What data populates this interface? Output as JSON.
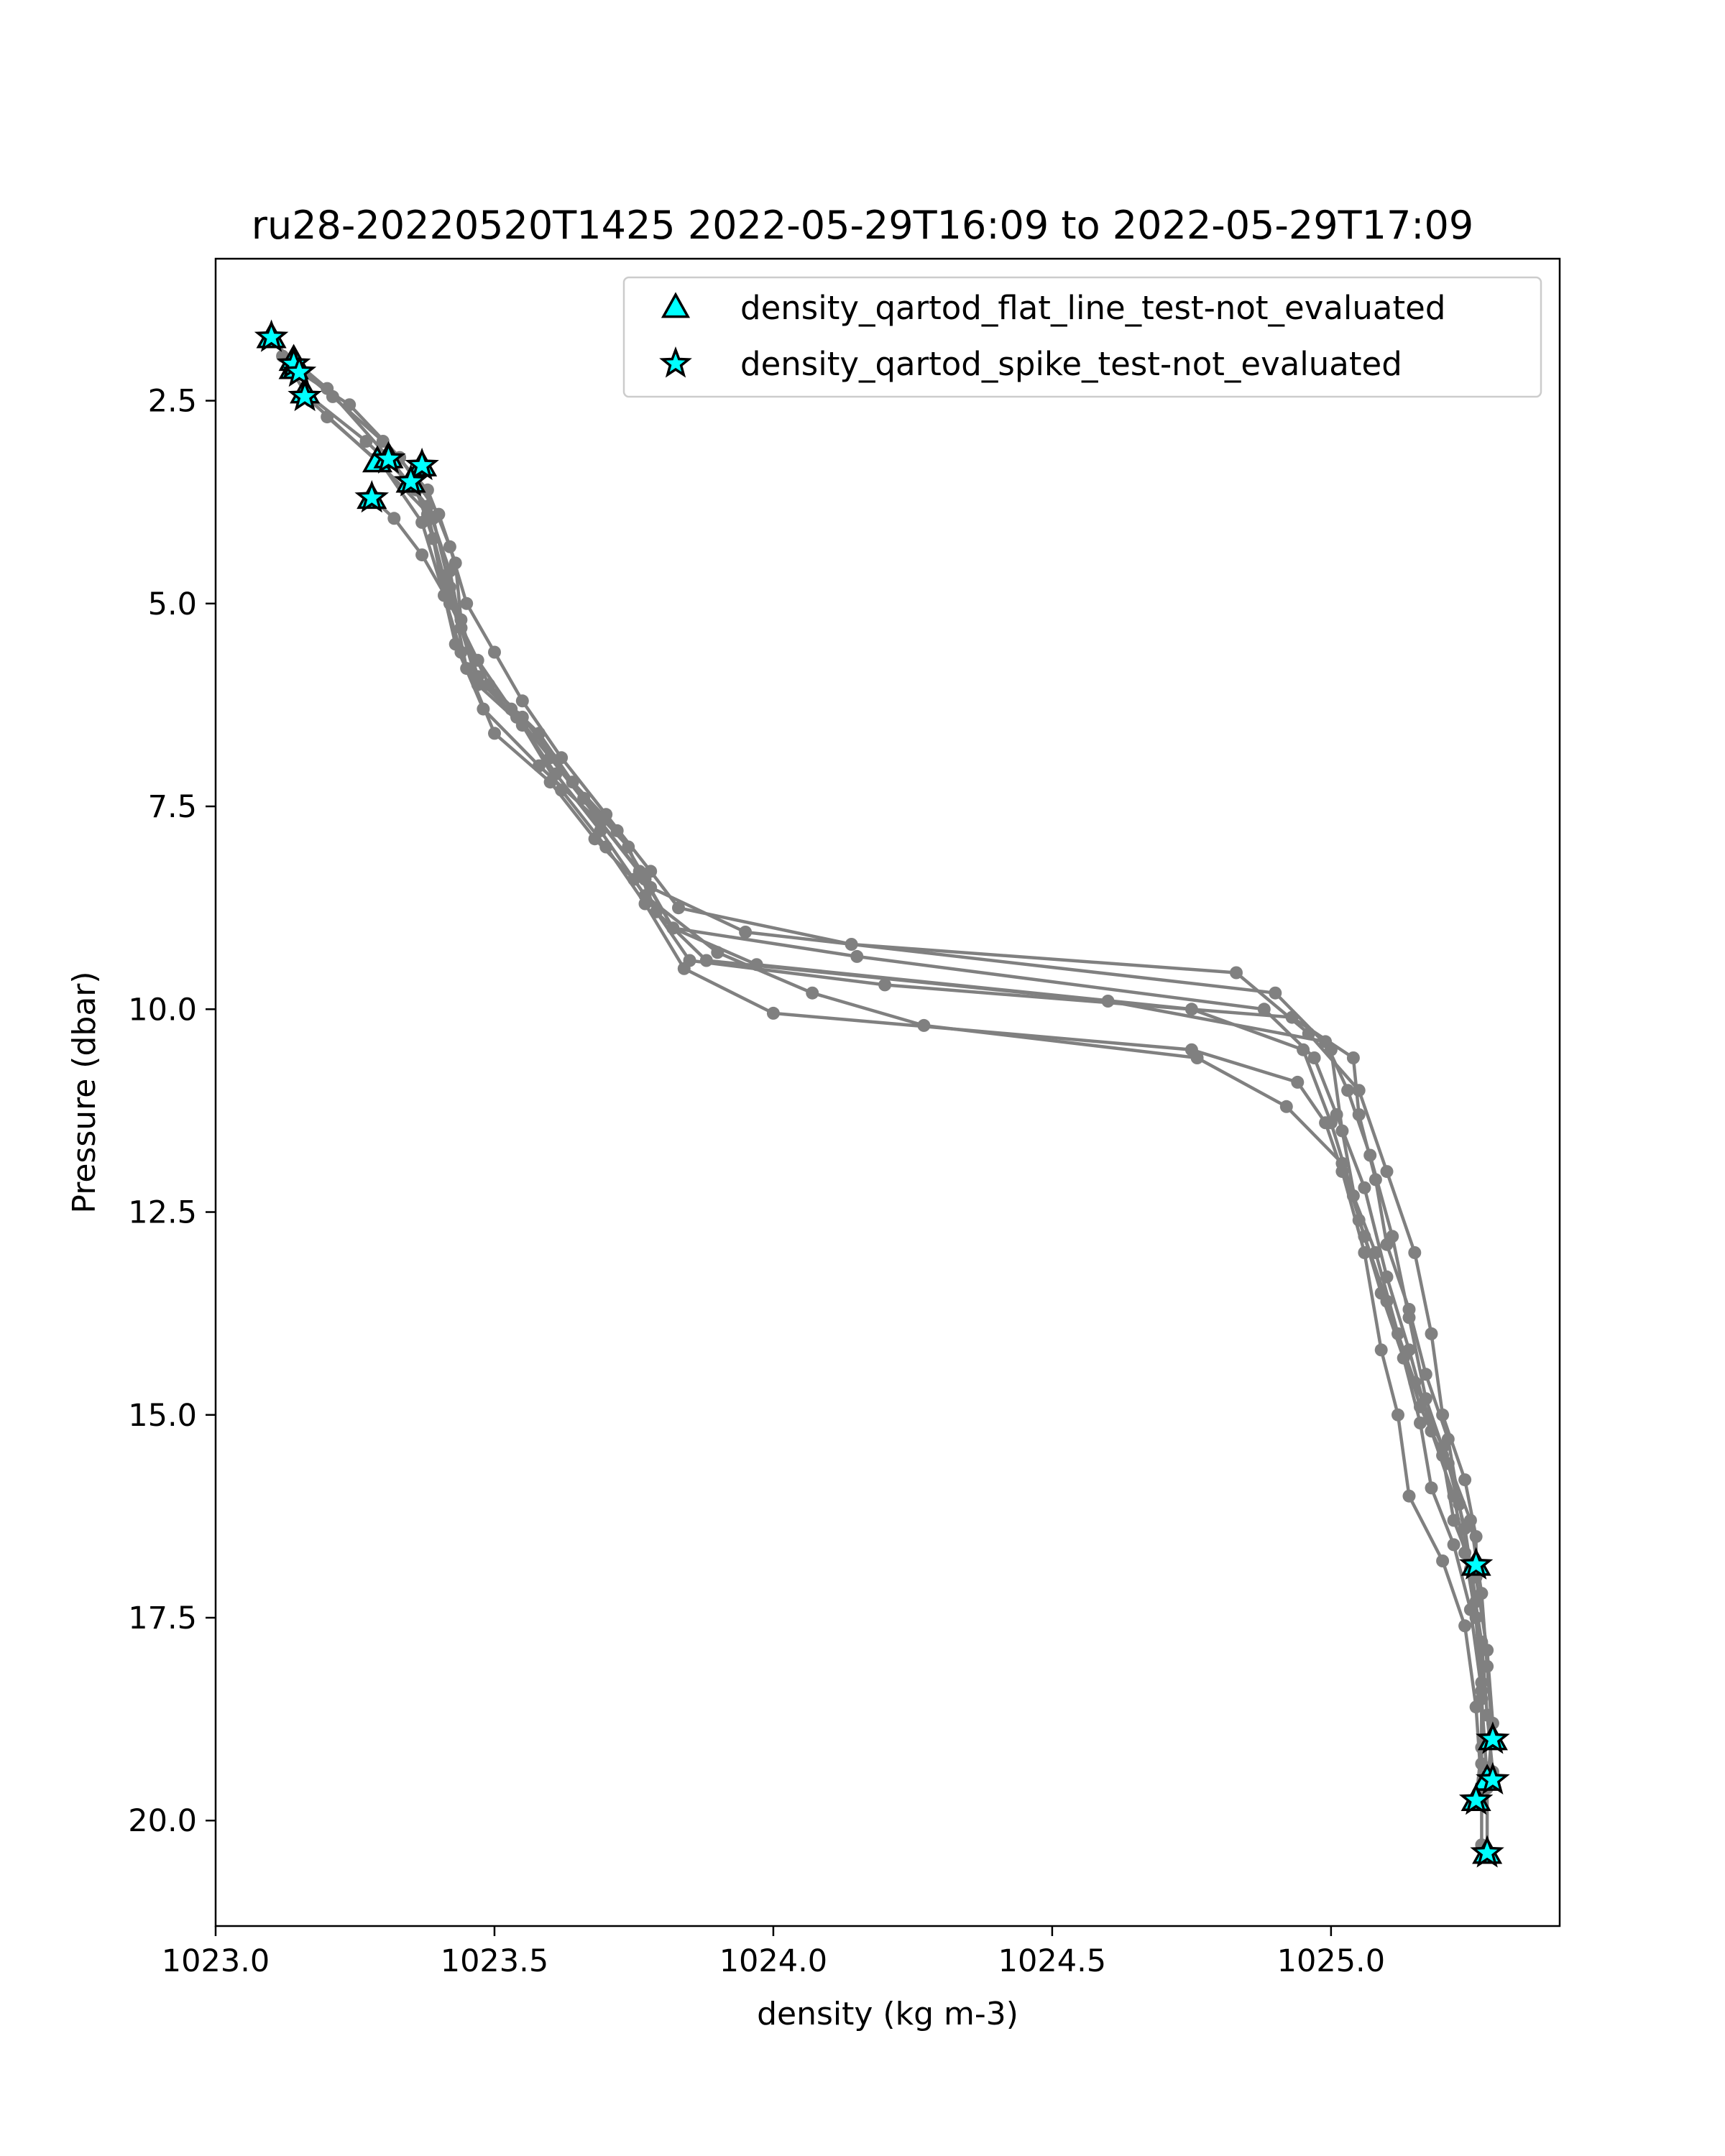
{
  "chart_data": {
    "type": "line",
    "title": "ru28-20220520T1425 2022-05-29T16:09 to 2022-05-29T17:09",
    "xlabel": "density (kg m-3)",
    "ylabel": "Pressure (dbar)",
    "xlim": [
      1023.0,
      1025.41
    ],
    "ylim": [
      21.3,
      0.75
    ],
    "y_inverted": true,
    "grid": false,
    "legend_position": "upper right",
    "xticks": [
      {
        "value": 1023.0,
        "label": "1023.0"
      },
      {
        "value": 1023.5,
        "label": "1023.5"
      },
      {
        "value": 1024.0,
        "label": "1024.0"
      },
      {
        "value": 1024.5,
        "label": "1024.5"
      },
      {
        "value": 1025.0,
        "label": "1025.0"
      }
    ],
    "yticks": [
      {
        "value": 2.5,
        "label": "2.5"
      },
      {
        "value": 5.0,
        "label": "5.0"
      },
      {
        "value": 7.5,
        "label": "7.5"
      },
      {
        "value": 10.0,
        "label": "10.0"
      },
      {
        "value": 12.5,
        "label": "12.5"
      },
      {
        "value": 15.0,
        "label": "15.0"
      },
      {
        "value": 17.5,
        "label": "17.5"
      },
      {
        "value": 20.0,
        "label": "20.0"
      }
    ],
    "profile_color": "#808080",
    "series": [
      {
        "points": [
          [
            1023.1,
            1.72
          ],
          [
            1023.14,
            2.05
          ],
          [
            1023.21,
            2.45
          ],
          [
            1023.3,
            3.0
          ],
          [
            1023.38,
            3.6
          ],
          [
            1023.42,
            4.3
          ],
          [
            1023.45,
            5.0
          ],
          [
            1023.5,
            5.6
          ],
          [
            1023.55,
            6.2
          ],
          [
            1023.62,
            6.9
          ],
          [
            1023.7,
            7.6
          ],
          [
            1023.78,
            8.3
          ],
          [
            1023.83,
            8.75
          ],
          [
            1024.14,
            9.2
          ],
          [
            1024.83,
            9.55
          ],
          [
            1024.96,
            10.3
          ],
          [
            1025.05,
            11.0
          ],
          [
            1025.1,
            12.0
          ],
          [
            1025.15,
            13.0
          ],
          [
            1025.18,
            14.0
          ],
          [
            1025.2,
            15.0
          ],
          [
            1025.24,
            15.8
          ],
          [
            1025.26,
            16.5
          ],
          [
            1025.26,
            16.85
          ]
        ]
      },
      {
        "points": [
          [
            1023.14,
            2.1
          ],
          [
            1023.24,
            2.55
          ],
          [
            1023.33,
            3.2
          ],
          [
            1023.4,
            3.9
          ],
          [
            1023.43,
            4.5
          ],
          [
            1023.44,
            5.2
          ],
          [
            1023.47,
            5.9
          ],
          [
            1023.55,
            6.4
          ],
          [
            1023.64,
            7.2
          ],
          [
            1023.72,
            7.8
          ],
          [
            1023.78,
            8.5
          ],
          [
            1023.95,
            9.05
          ],
          [
            1024.9,
            9.8
          ],
          [
            1025.0,
            10.5
          ],
          [
            1025.02,
            11.5
          ],
          [
            1025.05,
            12.6
          ],
          [
            1025.1,
            13.6
          ],
          [
            1025.15,
            14.6
          ],
          [
            1025.2,
            15.4
          ],
          [
            1025.25,
            16.3
          ],
          [
            1025.27,
            17.2
          ],
          [
            1025.28,
            18.1
          ],
          [
            1025.29,
            19.0
          ]
        ]
      },
      {
        "points": [
          [
            1023.16,
            2.4
          ],
          [
            1023.27,
            3.0
          ],
          [
            1023.36,
            3.6
          ],
          [
            1023.39,
            4.2
          ],
          [
            1023.41,
            4.9
          ],
          [
            1023.43,
            5.5
          ],
          [
            1023.48,
            6.3
          ],
          [
            1023.58,
            7.0
          ],
          [
            1023.69,
            7.7
          ],
          [
            1023.77,
            8.4
          ],
          [
            1023.82,
            9.0
          ],
          [
            1024.15,
            9.35
          ],
          [
            1024.88,
            10.0
          ],
          [
            1024.97,
            10.6
          ],
          [
            1025.01,
            11.3
          ],
          [
            1025.06,
            12.2
          ],
          [
            1025.1,
            13.3
          ],
          [
            1025.14,
            14.2
          ],
          [
            1025.18,
            15.2
          ],
          [
            1025.22,
            16.0
          ],
          [
            1025.24,
            16.7
          ],
          [
            1025.26,
            17.5
          ],
          [
            1025.27,
            18.5
          ],
          [
            1025.28,
            19.5
          ]
        ]
      },
      {
        "points": [
          [
            1023.14,
            2.0
          ],
          [
            1023.2,
            2.35
          ],
          [
            1023.31,
            3.2
          ],
          [
            1023.38,
            3.8
          ],
          [
            1023.42,
            4.6
          ],
          [
            1023.44,
            5.3
          ],
          [
            1023.49,
            6.0
          ],
          [
            1023.58,
            6.6
          ],
          [
            1023.66,
            7.4
          ],
          [
            1023.74,
            8.0
          ],
          [
            1023.79,
            8.8
          ],
          [
            1023.88,
            9.4
          ],
          [
            1024.6,
            9.9
          ],
          [
            1024.99,
            10.4
          ],
          [
            1025.03,
            11.0
          ],
          [
            1025.07,
            11.8
          ],
          [
            1025.11,
            12.8
          ],
          [
            1025.14,
            13.8
          ],
          [
            1025.17,
            14.8
          ],
          [
            1025.21,
            15.6
          ],
          [
            1025.24,
            16.4
          ],
          [
            1025.26,
            17.3
          ],
          [
            1025.27,
            18.3
          ],
          [
            1025.27,
            19.1
          ],
          [
            1025.26,
            19.75
          ]
        ]
      },
      {
        "points": [
          [
            1023.28,
            3.7
          ],
          [
            1023.32,
            3.95
          ],
          [
            1023.37,
            4.4
          ],
          [
            1023.42,
            5.0
          ],
          [
            1023.47,
            5.7
          ],
          [
            1023.53,
            6.3
          ],
          [
            1023.6,
            6.9
          ],
          [
            1023.68,
            7.6
          ],
          [
            1023.76,
            8.3
          ],
          [
            1023.82,
            9.0
          ],
          [
            1023.97,
            9.45
          ],
          [
            1024.75,
            10.0
          ],
          [
            1024.95,
            10.5
          ],
          [
            1025.0,
            11.4
          ],
          [
            1025.04,
            12.3
          ],
          [
            1025.08,
            13.0
          ],
          [
            1025.12,
            14.0
          ],
          [
            1025.16,
            14.9
          ],
          [
            1025.2,
            15.5
          ],
          [
            1025.22,
            16.3
          ],
          [
            1025.26,
            17.0
          ],
          [
            1025.28,
            17.9
          ],
          [
            1025.29,
            18.8
          ],
          [
            1025.28,
            19.6
          ],
          [
            1025.28,
            20.4
          ]
        ]
      },
      {
        "points": [
          [
            1023.35,
            3.5
          ],
          [
            1023.38,
            3.9
          ],
          [
            1023.41,
            4.7
          ],
          [
            1023.44,
            5.3
          ],
          [
            1023.47,
            6.0
          ],
          [
            1023.55,
            6.5
          ],
          [
            1023.62,
            7.3
          ],
          [
            1023.7,
            8.0
          ],
          [
            1023.77,
            8.7
          ],
          [
            1023.84,
            9.5
          ],
          [
            1024.0,
            10.05
          ],
          [
            1024.75,
            10.5
          ],
          [
            1024.94,
            10.9
          ],
          [
            1024.99,
            11.4
          ],
          [
            1025.02,
            12.0
          ],
          [
            1025.06,
            13.0
          ],
          [
            1025.09,
            14.2
          ],
          [
            1025.12,
            15.0
          ],
          [
            1025.14,
            16.0
          ],
          [
            1025.2,
            16.8
          ],
          [
            1025.24,
            17.6
          ],
          [
            1025.26,
            18.6
          ],
          [
            1025.27,
            19.6
          ],
          [
            1025.27,
            20.3
          ]
        ]
      },
      {
        "points": [
          [
            1023.12,
            1.95
          ],
          [
            1023.17,
            2.5
          ],
          [
            1023.29,
            3.25
          ],
          [
            1023.39,
            3.95
          ],
          [
            1023.42,
            4.8
          ],
          [
            1023.45,
            5.8
          ],
          [
            1023.54,
            6.4
          ],
          [
            1023.61,
            7.1
          ],
          [
            1023.69,
            7.8
          ],
          [
            1023.77,
            8.6
          ],
          [
            1023.9,
            9.3
          ],
          [
            1024.07,
            9.8
          ],
          [
            1024.27,
            10.2
          ],
          [
            1024.76,
            10.6
          ],
          [
            1024.92,
            11.2
          ],
          [
            1025.02,
            11.9
          ],
          [
            1025.06,
            12.8
          ],
          [
            1025.09,
            13.5
          ],
          [
            1025.13,
            14.3
          ],
          [
            1025.16,
            15.1
          ],
          [
            1025.18,
            15.9
          ],
          [
            1025.22,
            16.6
          ],
          [
            1025.25,
            17.4
          ],
          [
            1025.27,
            18.4
          ],
          [
            1025.27,
            19.3
          ],
          [
            1025.27,
            19.75
          ]
        ]
      },
      {
        "points": [
          [
            1023.2,
            2.7
          ],
          [
            1023.3,
            3.3
          ],
          [
            1023.37,
            4.0
          ],
          [
            1023.41,
            4.9
          ],
          [
            1023.44,
            5.6
          ],
          [
            1023.5,
            6.6
          ],
          [
            1023.6,
            7.2
          ],
          [
            1023.68,
            7.9
          ],
          [
            1023.75,
            8.4
          ],
          [
            1023.85,
            9.4
          ],
          [
            1024.2,
            9.7
          ],
          [
            1024.93,
            10.1
          ],
          [
            1025.04,
            10.6
          ],
          [
            1025.05,
            11.3
          ],
          [
            1025.08,
            12.1
          ],
          [
            1025.1,
            12.9
          ],
          [
            1025.14,
            13.7
          ],
          [
            1025.17,
            14.5
          ],
          [
            1025.21,
            15.3
          ],
          [
            1025.23,
            16.1
          ],
          [
            1025.25,
            16.9
          ],
          [
            1025.27,
            17.8
          ],
          [
            1025.28,
            18.7
          ],
          [
            1025.29,
            19.4
          ]
        ]
      }
    ],
    "legend": [
      {
        "marker": "triangle",
        "label": "density_qartod_flat_line_test-not_evaluated",
        "color": "#00ffff"
      },
      {
        "marker": "star",
        "label": "density_qartod_spike_test-not_evaluated",
        "color": "#00ffff"
      }
    ],
    "flag_points": [
      {
        "series": "density_qartod_flat_line_test-not_evaluated",
        "marker": "triangle",
        "points": [
          [
            1023.1,
            1.72
          ],
          [
            1023.14,
            2.0
          ],
          [
            1023.14,
            2.1
          ],
          [
            1023.16,
            2.4
          ],
          [
            1023.29,
            3.25
          ],
          [
            1023.31,
            3.2
          ],
          [
            1023.37,
            3.3
          ],
          [
            1023.35,
            3.5
          ],
          [
            1023.28,
            3.7
          ],
          [
            1025.26,
            16.85
          ],
          [
            1025.29,
            19.0
          ],
          [
            1025.28,
            19.5
          ],
          [
            1025.26,
            19.75
          ],
          [
            1025.28,
            20.4
          ]
        ]
      },
      {
        "series": "density_qartod_spike_test-not_evaluated",
        "marker": "star",
        "points": [
          [
            1023.1,
            1.72
          ],
          [
            1023.14,
            2.05
          ],
          [
            1023.15,
            2.15
          ],
          [
            1023.16,
            2.45
          ],
          [
            1023.31,
            3.22
          ],
          [
            1023.37,
            3.3
          ],
          [
            1023.35,
            3.5
          ],
          [
            1023.28,
            3.7
          ],
          [
            1025.26,
            16.85
          ],
          [
            1025.29,
            19.0
          ],
          [
            1025.29,
            19.5
          ],
          [
            1025.26,
            19.75
          ],
          [
            1025.28,
            20.4
          ]
        ]
      }
    ]
  }
}
